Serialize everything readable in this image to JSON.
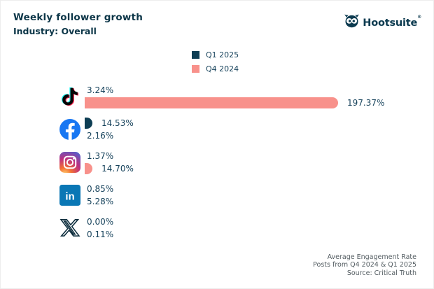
{
  "header": {
    "title": "Weekly follower growth",
    "subtitle": "Industry: Overall"
  },
  "brand": {
    "name": "Hootsuite",
    "reg": "®",
    "color": "#0D3B50"
  },
  "legend": [
    {
      "label": "Q1 2025",
      "color": "#0E3E54"
    },
    {
      "label": "Q4 2024",
      "color": "#F8918B"
    }
  ],
  "chart_data": {
    "type": "bar",
    "orientation": "horizontal",
    "title": "Weekly follower growth",
    "subtitle": "Industry: Overall",
    "grid": false,
    "legend_position": "top-center",
    "xmax": 197.37,
    "categories": [
      {
        "label": "TikTok",
        "icon": "tiktok-icon"
      },
      {
        "label": "Facebook",
        "icon": "facebook-icon"
      },
      {
        "label": "Instagram",
        "icon": "instagram-icon"
      },
      {
        "label": "LinkedIn",
        "icon": "linkedin-icon"
      },
      {
        "label": "X",
        "icon": "x-icon"
      }
    ],
    "series": [
      {
        "name": "Q1 2025",
        "color": "#0E3E54",
        "values": [
          3.24,
          14.53,
          1.37,
          0.85,
          0.0
        ],
        "labels": [
          "3.24%",
          "14.53%",
          "1.37%",
          "0.85%",
          "0.00%"
        ]
      },
      {
        "name": "Q4 2024",
        "color": "#F8918B",
        "values": [
          197.37,
          2.16,
          14.7,
          5.28,
          0.11
        ],
        "labels": [
          "197.37%",
          "2.16%",
          "14.70%",
          "5.28%",
          "0.11%"
        ]
      }
    ]
  },
  "footer": {
    "lines": [
      "Average Engagement Rate",
      "Posts from Q4 2024 & Q1 2025",
      "Source: Critical Truth"
    ]
  }
}
